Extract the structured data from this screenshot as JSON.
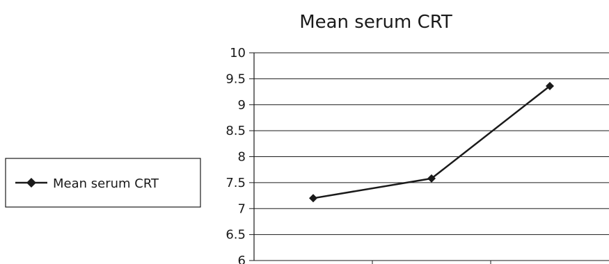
{
  "chart_data": {
    "type": "line",
    "title": "Mean serum CRT",
    "xlabel": "",
    "ylabel": "",
    "categories": [
      "",
      "",
      ""
    ],
    "series": [
      {
        "name": "Mean serum CRT",
        "values": [
          7.2,
          7.58,
          9.36
        ],
        "color": "#1a1a1a",
        "marker": "diamond"
      }
    ],
    "ylim": [
      6,
      10
    ],
    "yticks": [
      "6",
      "6.5",
      "7",
      "7.5",
      "8",
      "8.5",
      "9",
      "9.5",
      "10"
    ],
    "grid": true,
    "legend": "left"
  }
}
